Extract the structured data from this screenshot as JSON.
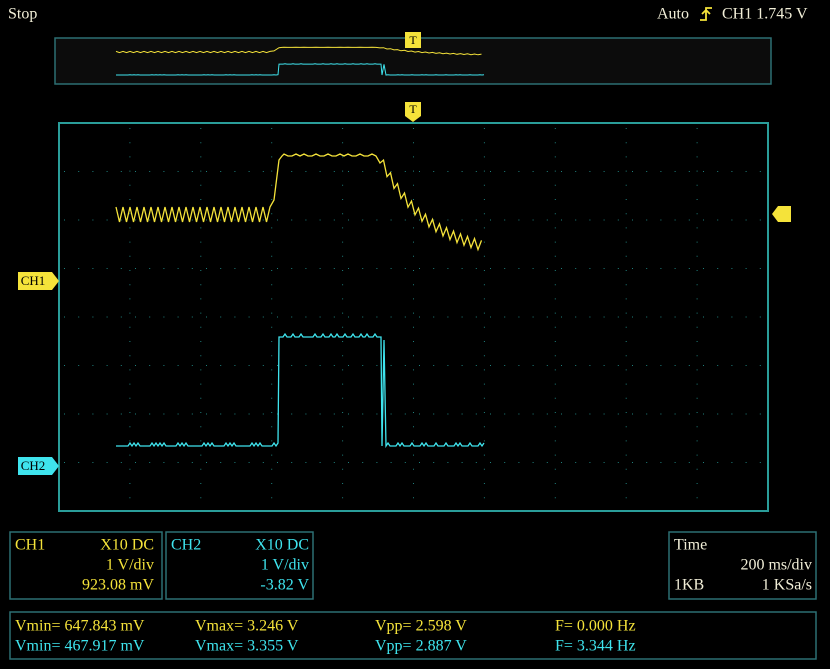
{
  "status": "Stop",
  "trigger": {
    "mode": "Auto",
    "source_level": "CH1 1.745 V",
    "marker": "T"
  },
  "markers": {
    "ch1": "CH1",
    "ch2": "CH2"
  },
  "channels": [
    {
      "name": "CH1",
      "probe": "X10  DC",
      "scale": "1 V/div",
      "offset": "923.08 mV"
    },
    {
      "name": "CH2",
      "probe": "X10  DC",
      "scale": "1 V/div",
      "offset": "-3.82 V"
    }
  ],
  "timebase": {
    "label": "Time",
    "scale": "200 ms/div",
    "memory": "1KB",
    "sample_rate": "1 KSa/s"
  },
  "measurements": [
    [
      "Vmin= 647.843 mV",
      "Vmax= 3.246 V",
      "Vpp= 2.598 V",
      "F= 0.000 Hz"
    ],
    [
      "Vmin= 467.917 mV",
      "Vmax= 3.355 V",
      "Vpp= 2.887 V",
      "F= 3.344 Hz"
    ]
  ]
}
